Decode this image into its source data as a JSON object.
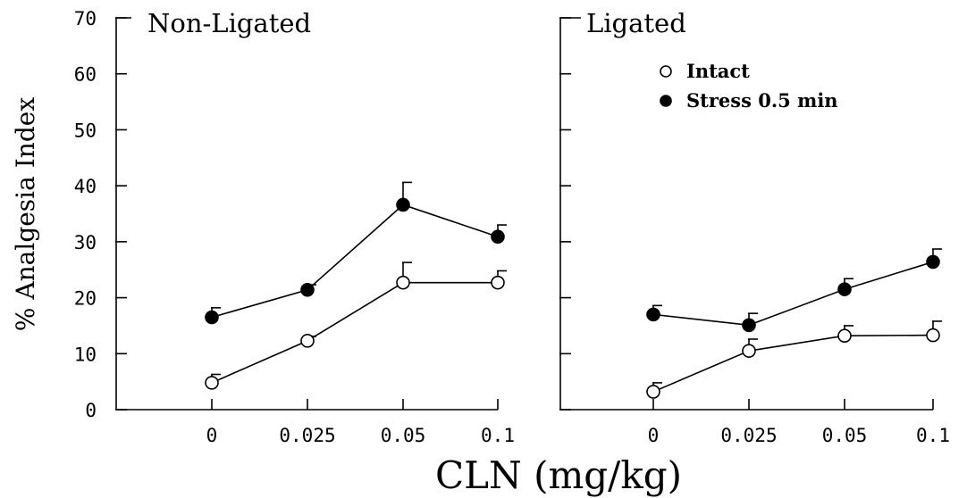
{
  "chart_data": {
    "type": "line",
    "ylabel": "% Analgesia Index",
    "xlabel": "CLN (mg/kg)",
    "ylim": [
      0,
      70
    ],
    "yticks": [
      "0",
      "10",
      "20",
      "30",
      "40",
      "50",
      "60",
      "70"
    ],
    "categories": [
      "0",
      "0.025",
      "0.05",
      "0.1"
    ],
    "legend": {
      "position": "top-right",
      "entries": [
        {
          "label": "Intact",
          "marker": "open-circle"
        },
        {
          "label": "Stress 0.5 min",
          "marker": "filled-circle"
        }
      ]
    },
    "panels": [
      {
        "title": "Non-Ligated",
        "series": [
          {
            "name": "Intact",
            "marker": "open-circle",
            "values": [
              4.8,
              12.3,
              22.7,
              22.7
            ],
            "errors": [
              1.5,
              0.8,
              3.6,
              2.1
            ]
          },
          {
            "name": "Stress 0.5 min",
            "marker": "filled-circle",
            "values": [
              16.5,
              21.4,
              36.6,
              30.9
            ],
            "errors": [
              1.7,
              0.9,
              4.0,
              2.1
            ]
          }
        ]
      },
      {
        "title": "Ligated",
        "series": [
          {
            "name": "Intact",
            "marker": "open-circle",
            "values": [
              3.2,
              10.5,
              13.2,
              13.3
            ],
            "errors": [
              1.6,
              2.1,
              1.8,
              2.5
            ]
          },
          {
            "name": "Stress 0.5 min",
            "marker": "filled-circle",
            "values": [
              17.0,
              15.1,
              21.5,
              26.4
            ],
            "errors": [
              1.6,
              2.1,
              1.9,
              2.3
            ]
          }
        ]
      }
    ]
  }
}
